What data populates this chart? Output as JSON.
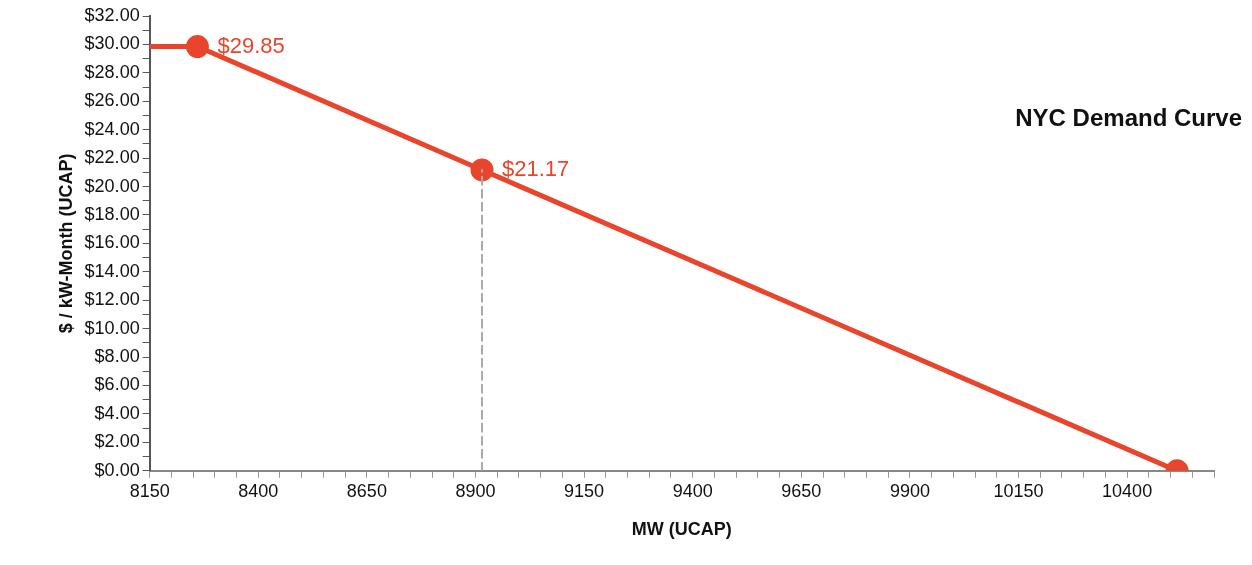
{
  "chart_data": {
    "type": "line",
    "title": "NYC Demand Curve",
    "xlabel": "MW (UCAP)",
    "ylabel": "$ / kW-Month (UCAP)",
    "xlim": [
      8150,
      10600
    ],
    "xticks": [
      8150,
      {
        "value": 8200,
        "label": null
      },
      {
        "value": 8250,
        "label": null
      },
      {
        "value": 8300,
        "label": null
      },
      {
        "value": 8350,
        "label": null
      },
      8400,
      {
        "value": 8450,
        "label": null
      },
      {
        "value": 8500,
        "label": null
      },
      {
        "value": 8550,
        "label": null
      },
      {
        "value": 8600,
        "label": null
      },
      8650,
      {
        "value": 8700,
        "label": null
      },
      {
        "value": 8750,
        "label": null
      },
      {
        "value": 8800,
        "label": null
      },
      {
        "value": 8850,
        "label": null
      },
      8900,
      {
        "value": 8950,
        "label": null
      },
      {
        "value": 9000,
        "label": null
      },
      {
        "value": 9050,
        "label": null
      },
      {
        "value": 9100,
        "label": null
      },
      9150,
      {
        "value": 9200,
        "label": null
      },
      {
        "value": 9250,
        "label": null
      },
      {
        "value": 9300,
        "label": null
      },
      {
        "value": 9350,
        "label": null
      },
      9400,
      {
        "value": 9450,
        "label": null
      },
      {
        "value": 9500,
        "label": null
      },
      {
        "value": 9550,
        "label": null
      },
      {
        "value": 9600,
        "label": null
      },
      9650,
      {
        "value": 9700,
        "label": null
      },
      {
        "value": 9750,
        "label": null
      },
      {
        "value": 9800,
        "label": null
      },
      {
        "value": 9850,
        "label": null
      },
      9900,
      {
        "value": 9950,
        "label": null
      },
      {
        "value": 10000,
        "label": null
      },
      {
        "value": 10050,
        "label": null
      },
      {
        "value": 10100,
        "label": null
      },
      10150,
      {
        "value": 10200,
        "label": null
      },
      {
        "value": 10250,
        "label": null
      },
      {
        "value": 10300,
        "label": null
      },
      {
        "value": 10350,
        "label": null
      },
      10400,
      {
        "value": 10450,
        "label": null
      },
      {
        "value": 10500,
        "label": null
      },
      {
        "value": 10550,
        "label": null
      },
      {
        "value": 10600,
        "label": null
      }
    ],
    "ylim": [
      0,
      32
    ],
    "yticks": [
      {
        "value": 0,
        "label": "$0.00"
      },
      {
        "value": 1,
        "label": null
      },
      {
        "value": 2,
        "label": "$2.00"
      },
      {
        "value": 3,
        "label": null
      },
      {
        "value": 4,
        "label": "$4.00"
      },
      {
        "value": 5,
        "label": null
      },
      {
        "value": 6,
        "label": "$6.00"
      },
      {
        "value": 7,
        "label": null
      },
      {
        "value": 8,
        "label": "$8.00"
      },
      {
        "value": 9,
        "label": null
      },
      {
        "value": 10,
        "label": "$10.00"
      },
      {
        "value": 11,
        "label": null
      },
      {
        "value": 12,
        "label": "$12.00"
      },
      {
        "value": 13,
        "label": null
      },
      {
        "value": 14,
        "label": "$14.00"
      },
      {
        "value": 15,
        "label": null
      },
      {
        "value": 16,
        "label": "$16.00"
      },
      {
        "value": 17,
        "label": null
      },
      {
        "value": 18,
        "label": "$18.00"
      },
      {
        "value": 19,
        "label": null
      },
      {
        "value": 20,
        "label": "$20.00"
      },
      {
        "value": 21,
        "label": null
      },
      {
        "value": 22,
        "label": "$22.00"
      },
      {
        "value": 23,
        "label": null
      },
      {
        "value": 24,
        "label": "$24.00"
      },
      {
        "value": 25,
        "label": null
      },
      {
        "value": 26,
        "label": "$26.00"
      },
      {
        "value": 27,
        "label": null
      },
      {
        "value": 28,
        "label": "$28.00"
      },
      {
        "value": 29,
        "label": null
      },
      {
        "value": 30,
        "label": "$30.00"
      },
      {
        "value": 31,
        "label": null
      },
      {
        "value": 32,
        "label": "$32.00"
      }
    ],
    "grid": false,
    "legend": false,
    "series": [
      {
        "color": "#aaaaaa",
        "x": [
          8915,
          8915
        ],
        "values": [
          0,
          21.17
        ],
        "line_style": "dashed",
        "marker": "none"
      },
      {
        "color": "#e8452c",
        "x": [
          8150,
          8260
        ],
        "values": [
          29.85,
          29.85
        ],
        "line_style": "solid"
      },
      {
        "color": "#e8452c",
        "x": [
          8260,
          8915,
          10515
        ],
        "values": [
          29.85,
          21.17,
          0
        ],
        "line_style": "solid",
        "marker": "circle",
        "value_labels": [
          "$29.85",
          "$21.17",
          null
        ]
      }
    ]
  }
}
